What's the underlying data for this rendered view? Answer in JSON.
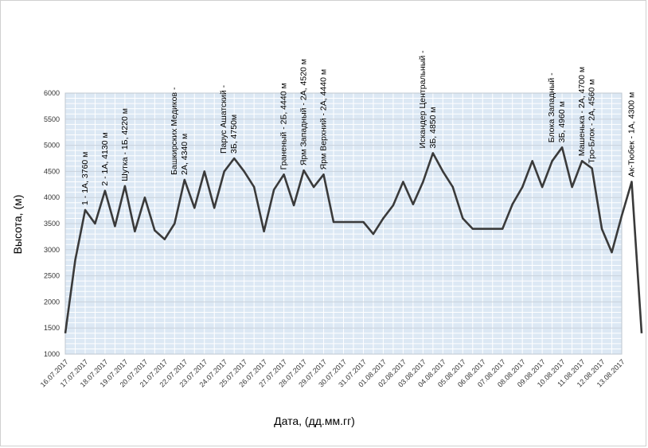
{
  "chart_data": {
    "type": "line",
    "xlabel": "Дата, (дд.мм.гг)",
    "ylabel": "Высота, (м)",
    "ylim": [
      1000,
      6000
    ],
    "yticks": [
      1000,
      1500,
      2000,
      2500,
      3000,
      3500,
      4000,
      4500,
      5000,
      5500,
      6000
    ],
    "grid": true,
    "colors": {
      "line": "#3a3a3a",
      "plot_bg": "#dce8f4",
      "grid": "#ffffff"
    },
    "categories": [
      "16.07.2017",
      "17.07.2017",
      "18.07.2017",
      "19.07.2017",
      "20.07.2017",
      "21.07.2017",
      "22.07.2017",
      "23.07.2017",
      "24.07.2017",
      "25.07.2017",
      "26.07.2017",
      "27.07.2017",
      "28.07.2017",
      "29.07.2017",
      "30.07.2017",
      "31.07.2017",
      "01.08.2017",
      "02.08.2017",
      "03.08.2017",
      "04.08.2017",
      "05.08.2017",
      "06.08.2017",
      "07.08.2017",
      "08.08.2017",
      "09.08.2017",
      "10.08.2017",
      "11.08.2017",
      "12.08.2017",
      "13.08.2017"
    ],
    "x": [
      0,
      0.5,
      1,
      1.5,
      2,
      2.5,
      3,
      3.5,
      4,
      4.5,
      5,
      5.5,
      6,
      6.5,
      7,
      7.5,
      8,
      8.5,
      9,
      9.5,
      10,
      10.5,
      11,
      11.5,
      12,
      12.5,
      13,
      13.5,
      14,
      14.5,
      15,
      15.5,
      16,
      16.5,
      17,
      17.5,
      18,
      18.5,
      19,
      19.5,
      20,
      20.5,
      21,
      21.5,
      22,
      22.5,
      23,
      23.5,
      24,
      24.5,
      25,
      25.5,
      26,
      26.5,
      27,
      27.5,
      28,
      28.5,
      29
    ],
    "values": [
      1400,
      2800,
      3760,
      3500,
      4130,
      3450,
      4220,
      3350,
      4000,
      3370,
      3200,
      3500,
      4340,
      3800,
      4500,
      3800,
      4500,
      4750,
      4500,
      4200,
      3350,
      4150,
      4440,
      3850,
      4520,
      4200,
      4440,
      3530,
      3530,
      3530,
      3530,
      3300,
      3600,
      3850,
      4300,
      3870,
      4300,
      4850,
      4500,
      4200,
      3600,
      3400,
      3400,
      3400,
      3400,
      3870,
      4200,
      4700,
      4200,
      4700,
      4960,
      4200,
      4700,
      4560,
      3400,
      2950,
      3650,
      4300,
      1400
    ],
    "annotations": [
      {
        "label": "1 - 1А, 3760 м",
        "x": 1,
        "y": 3760
      },
      {
        "label": "2 - 1А, 4130 м",
        "x": 2,
        "y": 4130
      },
      {
        "label": "Шутка - 1Б, 4220 м",
        "x": 3,
        "y": 4220
      },
      {
        "label": "Башкирских Медиков -",
        "x": 6,
        "y": 4340,
        "offset": -1
      },
      {
        "label": "2А, 4340 м",
        "x": 6,
        "y": 4340
      },
      {
        "label": "Парус Ашатский -",
        "x": 8.5,
        "y": 4750,
        "offset": -1
      },
      {
        "label": "3Б, 4750м",
        "x": 8.5,
        "y": 4750
      },
      {
        "label": "Граненый - 2Б, 4440 м",
        "x": 11,
        "y": 4440
      },
      {
        "label": "Ярм Западный - 2А, 4520 м",
        "x": 12,
        "y": 4520
      },
      {
        "label": "Ярм Верхний - 2А, 4440 м",
        "x": 13,
        "y": 4440
      },
      {
        "label": "Искандер Центральный -",
        "x": 18.5,
        "y": 4850,
        "offset": -1
      },
      {
        "label": "3Б, 4850 м",
        "x": 18.5,
        "y": 4850
      },
      {
        "label": "Блока Западный -",
        "x": 25,
        "y": 4960,
        "offset": -1
      },
      {
        "label": "3Б, 4960 м",
        "x": 25,
        "y": 4960
      },
      {
        "label": "Машенька - 2А, 4700 м",
        "x": 26,
        "y": 4700
      },
      {
        "label": "Тро-Блок - 2А, 4560 м",
        "x": 26.5,
        "y": 4560
      },
      {
        "label": "Ак-Тюбек - 1А, 4300 м",
        "x": 28.5,
        "y": 4300
      }
    ]
  }
}
